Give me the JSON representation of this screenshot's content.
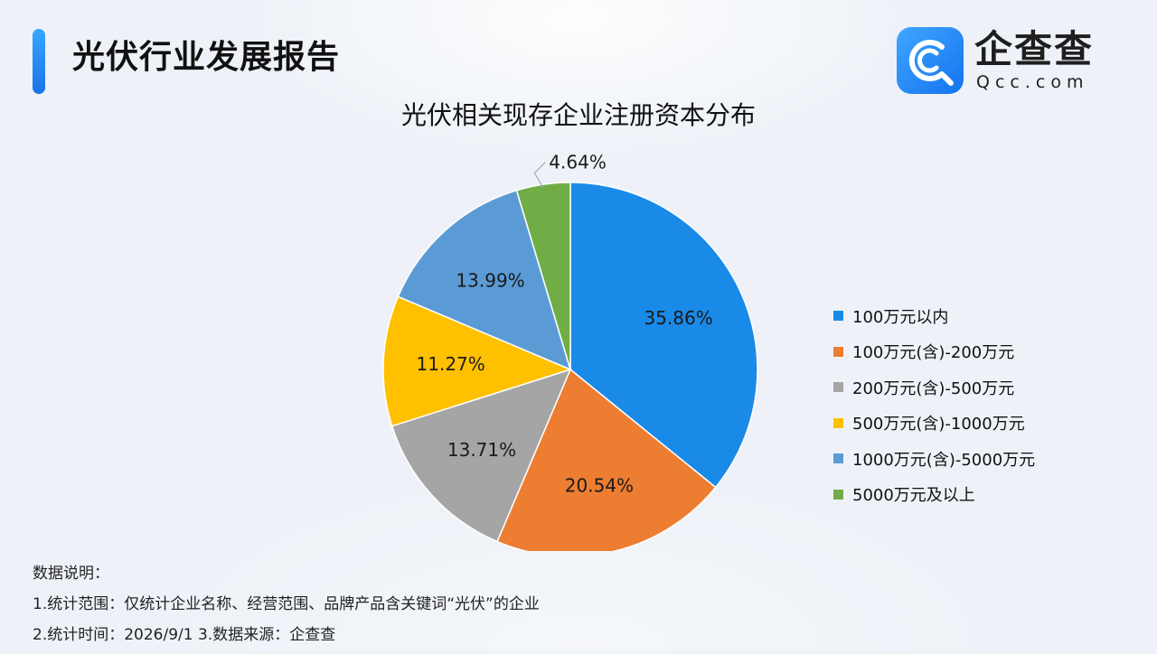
{
  "header": {
    "report_title": "光伏行业发展报告"
  },
  "logo": {
    "name": "企查查",
    "domain": "Qcc.com",
    "brand_color": "#1a84f2"
  },
  "chart_data": {
    "type": "pie",
    "title": "光伏相关现存企业注册资本分布",
    "legend_position": "right",
    "slices": [
      {
        "label": "100万元以内",
        "value": 35.86,
        "display": "35.86%",
        "color": "#1a8ae8"
      },
      {
        "label": "100万元(含)-200万元",
        "value": 20.54,
        "display": "20.54%",
        "color": "#ed7d31"
      },
      {
        "label": "200万元(含)-500万元",
        "value": 13.71,
        "display": "13.71%",
        "color": "#a5a5a5"
      },
      {
        "label": "500万元(含)-1000万元",
        "value": 11.27,
        "display": "11.27%",
        "color": "#ffc000"
      },
      {
        "label": "1000万元(含)-5000万元",
        "value": 13.99,
        "display": "13.99%",
        "color": "#5b9bd5"
      },
      {
        "label": "5000万元及以上",
        "value": 4.64,
        "display": "4.64%",
        "color": "#70ad47"
      }
    ]
  },
  "notes": {
    "heading": "数据说明：",
    "line1": "1.统计范围：仅统计企业名称、经营范围、品牌产品含关键词“光伏”的企业",
    "line2": "2.统计时间：2026/9/1 3.数据来源：企查查"
  }
}
